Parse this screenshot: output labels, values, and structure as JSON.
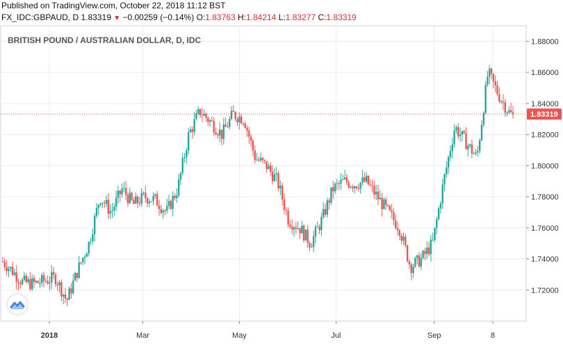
{
  "header": {
    "published": "Published on TradingView.com, October 22, 2018 11:12 BST",
    "symbol_line": "FX_IDC:GBPAUD, D",
    "last": "1.83319",
    "change": "−0.00259 (−0.14%)",
    "o_label": "O:",
    "o_value": "1.83763",
    "h_label": "H:",
    "h_value": "1.84214",
    "l_label": "L:",
    "l_value": "1.83277",
    "c_label": "C:",
    "c_value": "1.83319"
  },
  "chart_data": {
    "type": "candlestick",
    "title": "BRITISH POUND / AUSTRALIAN DOLLAR, D, IDC",
    "ylim": [
      1.7,
      1.89
    ],
    "y_ticks": [
      "1.88000",
      "1.86000",
      "1.84000",
      "1.82000",
      "1.80000",
      "1.78000",
      "1.76000",
      "1.74000",
      "1.72000"
    ],
    "x_ticks": [
      "2018",
      "Mar",
      "May",
      "Jul",
      "Sep",
      "8"
    ],
    "last_price_label": "1.83319",
    "colors": {
      "up": "#26a69a",
      "down": "#ef5350",
      "price_line": "#ef5350",
      "grid": "#e9ecef"
    },
    "close_path": [
      [
        "2017-10-20",
        1.73
      ],
      [
        "2017-10-27",
        1.747
      ],
      [
        "2017-11-03",
        1.768
      ],
      [
        "2017-11-10",
        1.795
      ],
      [
        "2017-11-17",
        1.768
      ],
      [
        "2017-11-24",
        1.75
      ],
      [
        "2017-12-01",
        1.74
      ],
      [
        "2017-12-08",
        1.733
      ],
      [
        "2017-12-15",
        1.725
      ],
      [
        "2017-12-22",
        1.724
      ],
      [
        "2017-12-29",
        1.726
      ],
      [
        "2018-01-05",
        1.728
      ],
      [
        "2018-01-12",
        1.713
      ],
      [
        "2018-01-19",
        1.733
      ],
      [
        "2018-01-26",
        1.75
      ],
      [
        "2018-02-02",
        1.78
      ],
      [
        "2018-02-09",
        1.77
      ],
      [
        "2018-02-16",
        1.785
      ],
      [
        "2018-02-23",
        1.775
      ],
      [
        "2018-03-02",
        1.78
      ],
      [
        "2018-03-09",
        1.778
      ],
      [
        "2018-03-16",
        1.77
      ],
      [
        "2018-03-23",
        1.785
      ],
      [
        "2018-03-30",
        1.82
      ],
      [
        "2018-04-06",
        1.835
      ],
      [
        "2018-04-13",
        1.828
      ],
      [
        "2018-04-20",
        1.82
      ],
      [
        "2018-04-27",
        1.833
      ],
      [
        "2018-05-04",
        1.83
      ],
      [
        "2018-05-11",
        1.805
      ],
      [
        "2018-05-18",
        1.8
      ],
      [
        "2018-05-25",
        1.79
      ],
      [
        "2018-06-01",
        1.765
      ],
      [
        "2018-06-08",
        1.76
      ],
      [
        "2018-06-15",
        1.75
      ],
      [
        "2018-06-22",
        1.765
      ],
      [
        "2018-06-29",
        1.785
      ],
      [
        "2018-07-06",
        1.79
      ],
      [
        "2018-07-13",
        1.788
      ],
      [
        "2018-07-20",
        1.79
      ],
      [
        "2018-07-27",
        1.78
      ],
      [
        "2018-08-03",
        1.77
      ],
      [
        "2018-08-10",
        1.76
      ],
      [
        "2018-08-17",
        1.735
      ],
      [
        "2018-08-24",
        1.74
      ],
      [
        "2018-08-31",
        1.75
      ],
      [
        "2018-09-07",
        1.79
      ],
      [
        "2018-09-14",
        1.825
      ],
      [
        "2018-09-21",
        1.815
      ],
      [
        "2018-09-28",
        1.805
      ],
      [
        "2018-10-05",
        1.86
      ],
      [
        "2018-10-12",
        1.845
      ],
      [
        "2018-10-19",
        1.833
      ]
    ]
  }
}
